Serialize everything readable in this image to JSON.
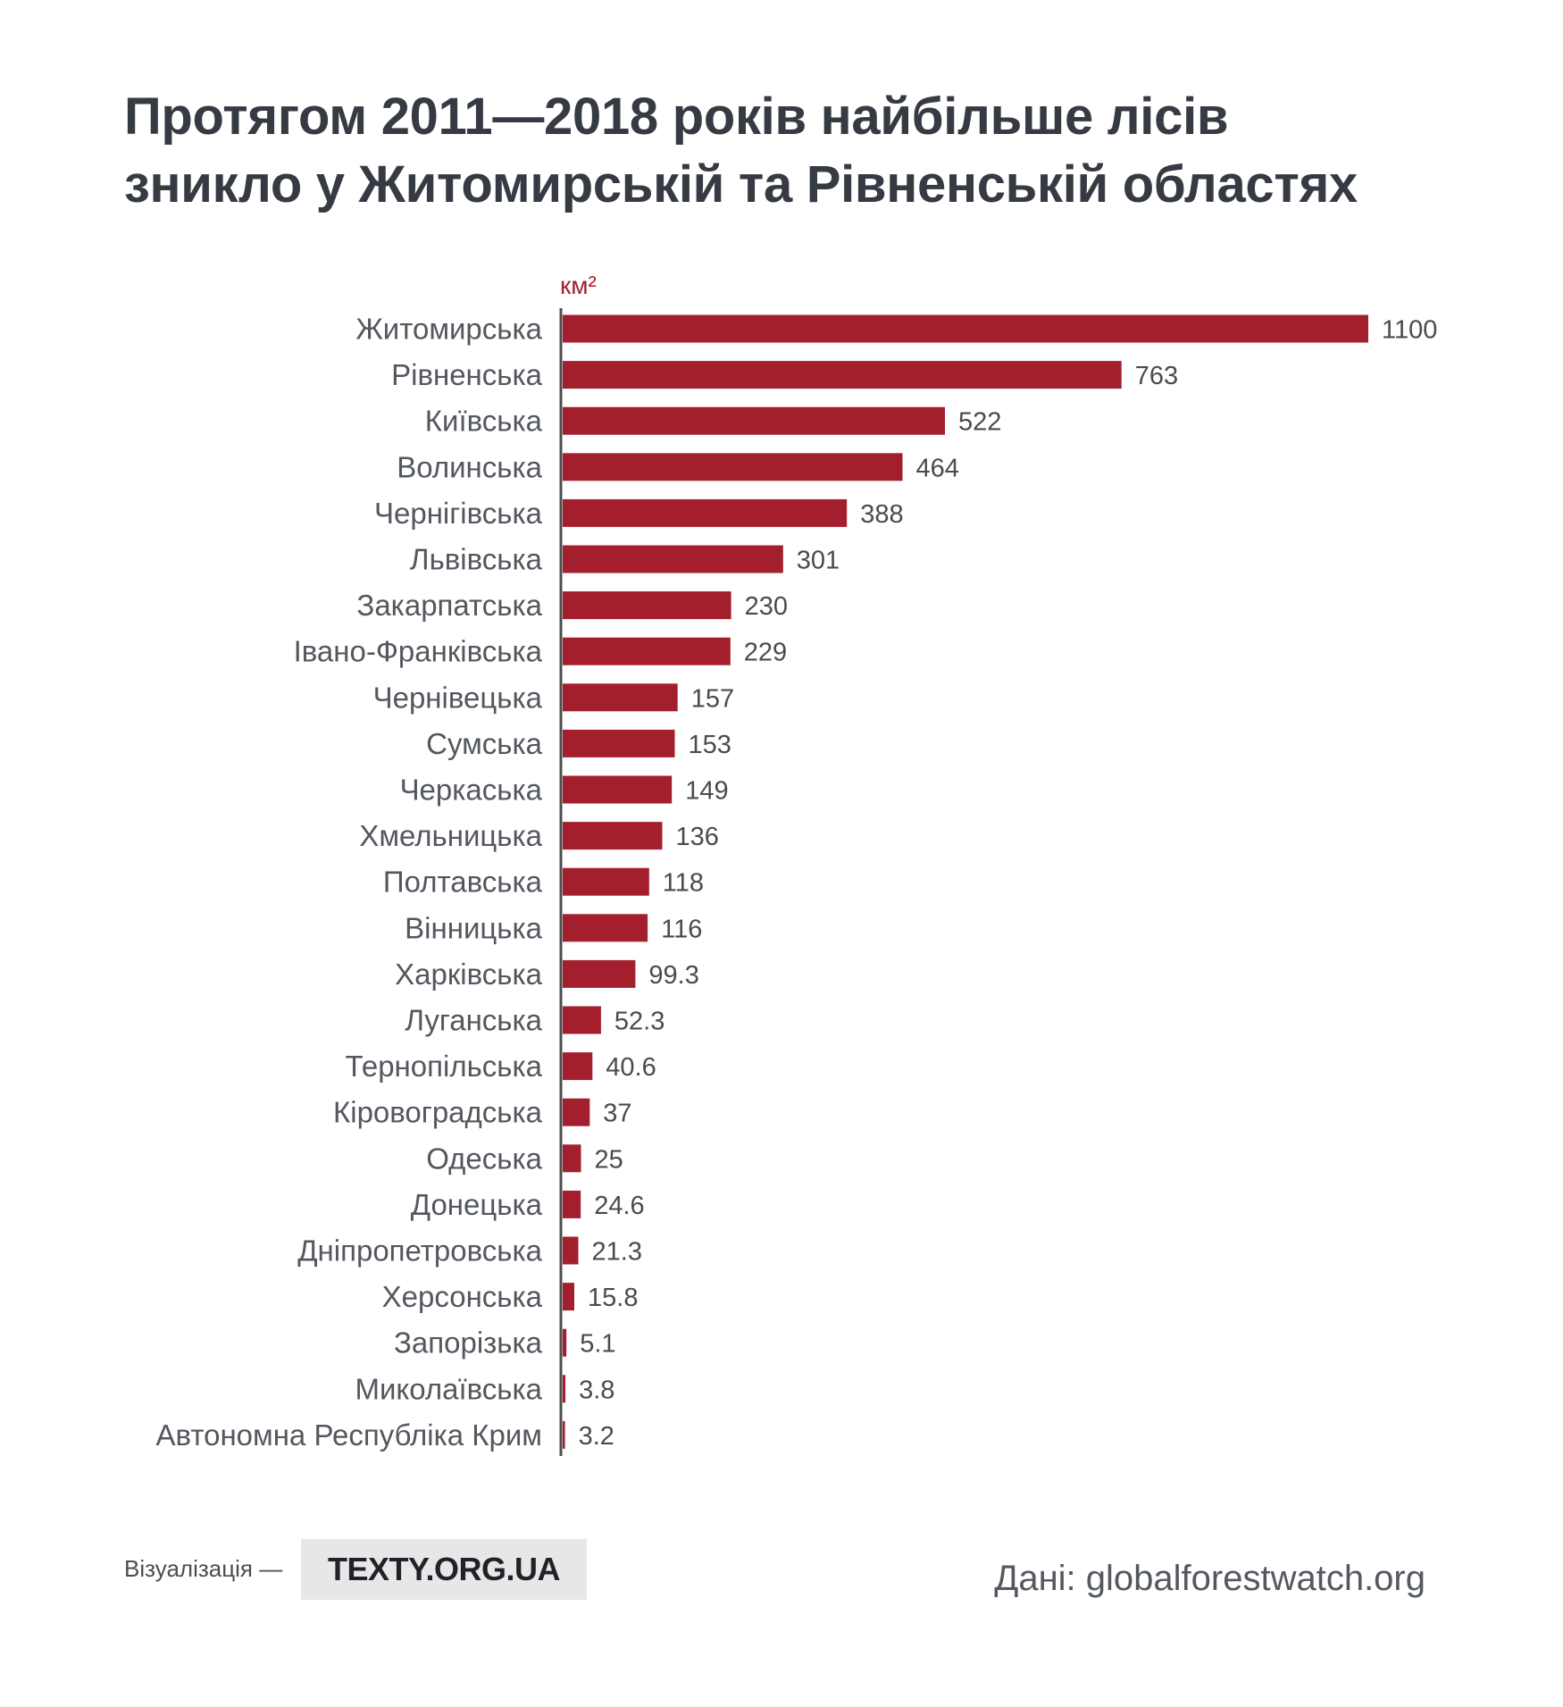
{
  "chart_data": {
    "type": "bar",
    "title_lines": [
      "Протягом 2011—2018 років найбільше лісів",
      "зникло у Житомирській та Рівненській областях"
    ],
    "unit": "км²",
    "xlabel": "",
    "ylabel": "",
    "grid": false,
    "color": "#a31f2e",
    "categories": [
      "Житомирська",
      "Рівненська",
      "Київська",
      "Волинська",
      "Чернігівська",
      "Львівська",
      "Закарпатська",
      "Івано-Франківська",
      "Чернівецька",
      "Сумська",
      "Черкаська",
      "Хмельницька",
      "Полтавська",
      "Вінницька",
      "Харківська",
      "Луганська",
      "Тернопільська",
      "Кіровоградська",
      "Одеська",
      "Донецька",
      "Дніпропетровська",
      "Херсонська",
      "Запорізька",
      "Миколаївська",
      "Автономна Республіка Крим"
    ],
    "values": [
      1100,
      763,
      522,
      464,
      388,
      301,
      230,
      229,
      157,
      153,
      149,
      136,
      118,
      116,
      99.3,
      52.3,
      40.6,
      37,
      25,
      24.6,
      21.3,
      15.8,
      5.1,
      3.8,
      3.2
    ]
  },
  "footer": {
    "credit_label": "Візуалізація —",
    "logo_text": "TEXTY.ORG.UA",
    "source": "Дані: globalforestwatch.org"
  },
  "colors": {
    "title": "#363a43",
    "axis": "#4d4d4d",
    "logo_background": "#e7e7e7"
  }
}
